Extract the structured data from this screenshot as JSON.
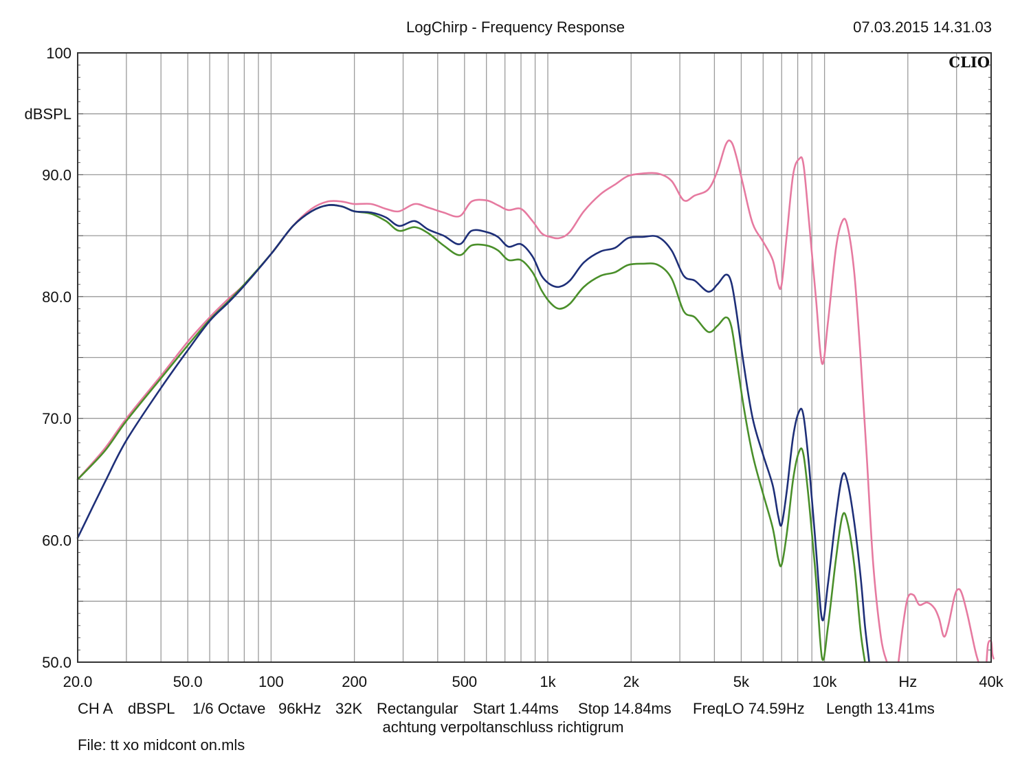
{
  "header": {
    "title": "LogChirp - Frequency Response",
    "timestamp": "07.03.2015 14.31.03",
    "brand": "CLIO"
  },
  "chart_data": {
    "type": "line",
    "title": "LogChirp - Frequency Response",
    "ylabel": "dBSPL",
    "xlabel": "Hz",
    "x_scale": "log",
    "xlim": [
      20,
      40000
    ],
    "ylim": [
      50,
      100
    ],
    "grid": true,
    "y_ticks": [
      "100",
      "90.0",
      "80.0",
      "70.0",
      "60.0",
      "50.0"
    ],
    "x_ticks": [
      {
        "v": 20,
        "label": "20.0"
      },
      {
        "v": 50,
        "label": "50.0"
      },
      {
        "v": 100,
        "label": "100"
      },
      {
        "v": 200,
        "label": "200"
      },
      {
        "v": 500,
        "label": "500"
      },
      {
        "v": 1000,
        "label": "1k"
      },
      {
        "v": 2000,
        "label": "2k"
      },
      {
        "v": 5000,
        "label": "5k"
      },
      {
        "v": 10000,
        "label": "10k"
      },
      {
        "v": 20000,
        "label": "Hz"
      },
      {
        "v": 40000,
        "label": "40k"
      }
    ],
    "series": [
      {
        "color": "#e67aa0",
        "points": [
          [
            20,
            65
          ],
          [
            25,
            67.5
          ],
          [
            30,
            70
          ],
          [
            40,
            73.5
          ],
          [
            50,
            76.3
          ],
          [
            60,
            78.3
          ],
          [
            70,
            79.8
          ],
          [
            80,
            81
          ],
          [
            100,
            83.5
          ],
          [
            120,
            85.8
          ],
          [
            140,
            87.2
          ],
          [
            160,
            87.8
          ],
          [
            180,
            87.8
          ],
          [
            200,
            87.6
          ],
          [
            230,
            87.6
          ],
          [
            260,
            87.2
          ],
          [
            290,
            87
          ],
          [
            330,
            87.6
          ],
          [
            370,
            87.3
          ],
          [
            420,
            86.9
          ],
          [
            480,
            86.6
          ],
          [
            530,
            87.8
          ],
          [
            600,
            87.9
          ],
          [
            660,
            87.5
          ],
          [
            720,
            87.1
          ],
          [
            800,
            87.2
          ],
          [
            880,
            86.2
          ],
          [
            950,
            85.2
          ],
          [
            1020,
            84.9
          ],
          [
            1100,
            84.8
          ],
          [
            1200,
            85.3
          ],
          [
            1350,
            87
          ],
          [
            1550,
            88.4
          ],
          [
            1750,
            89.2
          ],
          [
            1950,
            89.9
          ],
          [
            2200,
            90.1
          ],
          [
            2500,
            90.1
          ],
          [
            2800,
            89.5
          ],
          [
            3100,
            87.9
          ],
          [
            3400,
            88.3
          ],
          [
            3800,
            88.8
          ],
          [
            4100,
            90.3
          ],
          [
            4400,
            92.5
          ],
          [
            4600,
            92.7
          ],
          [
            4800,
            91.5
          ],
          [
            5100,
            89
          ],
          [
            5500,
            86
          ],
          [
            6000,
            84.5
          ],
          [
            6500,
            83
          ],
          [
            6800,
            81
          ],
          [
            7000,
            81
          ],
          [
            7300,
            85
          ],
          [
            7700,
            90
          ],
          [
            8100,
            91.3
          ],
          [
            8400,
            90.8
          ],
          [
            8800,
            86
          ],
          [
            9300,
            80
          ],
          [
            9800,
            74.5
          ],
          [
            10300,
            78
          ],
          [
            11000,
            84
          ],
          [
            11600,
            86.2
          ],
          [
            12100,
            85.8
          ],
          [
            12800,
            82
          ],
          [
            13500,
            75
          ],
          [
            14200,
            67
          ],
          [
            15000,
            58
          ],
          [
            16000,
            52
          ],
          [
            16800,
            50
          ]
        ]
      },
      {
        "color": "#4a8f2a",
        "points": [
          [
            20,
            65
          ],
          [
            25,
            67.3
          ],
          [
            30,
            69.8
          ],
          [
            40,
            73.3
          ],
          [
            50,
            76
          ],
          [
            60,
            78.1
          ],
          [
            70,
            79.6
          ],
          [
            80,
            81
          ],
          [
            100,
            83.5
          ],
          [
            120,
            85.8
          ],
          [
            140,
            87
          ],
          [
            160,
            87.5
          ],
          [
            180,
            87.4
          ],
          [
            200,
            87
          ],
          [
            230,
            86.8
          ],
          [
            260,
            86.2
          ],
          [
            290,
            85.4
          ],
          [
            330,
            85.7
          ],
          [
            370,
            85.2
          ],
          [
            420,
            84.2
          ],
          [
            480,
            83.4
          ],
          [
            530,
            84.2
          ],
          [
            600,
            84.2
          ],
          [
            660,
            83.8
          ],
          [
            720,
            83
          ],
          [
            800,
            83
          ],
          [
            880,
            82
          ],
          [
            950,
            80.5
          ],
          [
            1020,
            79.5
          ],
          [
            1100,
            79
          ],
          [
            1200,
            79.4
          ],
          [
            1350,
            80.8
          ],
          [
            1550,
            81.7
          ],
          [
            1750,
            82
          ],
          [
            1950,
            82.6
          ],
          [
            2200,
            82.7
          ],
          [
            2500,
            82.6
          ],
          [
            2800,
            81.5
          ],
          [
            3100,
            78.8
          ],
          [
            3400,
            78.3
          ],
          [
            3800,
            77.1
          ],
          [
            4100,
            77.6
          ],
          [
            4400,
            78.3
          ],
          [
            4600,
            77.6
          ],
          [
            4800,
            75
          ],
          [
            5100,
            71
          ],
          [
            5500,
            67
          ],
          [
            6000,
            63.8
          ],
          [
            6500,
            61
          ],
          [
            6800,
            58.5
          ],
          [
            7000,
            58
          ],
          [
            7300,
            60.5
          ],
          [
            7700,
            65
          ],
          [
            8100,
            67.3
          ],
          [
            8400,
            67
          ],
          [
            8800,
            63
          ],
          [
            9300,
            57
          ],
          [
            9800,
            50.3
          ],
          [
            10300,
            53
          ],
          [
            11000,
            58.5
          ],
          [
            11600,
            62
          ],
          [
            12100,
            61.5
          ],
          [
            12800,
            58
          ],
          [
            13500,
            52.5
          ],
          [
            14000,
            50
          ]
        ]
      },
      {
        "color": "#1e2f78",
        "points": [
          [
            20,
            60.2
          ],
          [
            25,
            64.7
          ],
          [
            30,
            68.2
          ],
          [
            40,
            72.5
          ],
          [
            50,
            75.6
          ],
          [
            60,
            78
          ],
          [
            70,
            79.5
          ],
          [
            80,
            80.9
          ],
          [
            100,
            83.5
          ],
          [
            120,
            85.8
          ],
          [
            140,
            87
          ],
          [
            160,
            87.5
          ],
          [
            180,
            87.4
          ],
          [
            200,
            87
          ],
          [
            230,
            86.9
          ],
          [
            260,
            86.5
          ],
          [
            290,
            85.8
          ],
          [
            330,
            86.2
          ],
          [
            370,
            85.5
          ],
          [
            420,
            85
          ],
          [
            480,
            84.3
          ],
          [
            530,
            85.4
          ],
          [
            600,
            85.3
          ],
          [
            660,
            84.9
          ],
          [
            720,
            84.1
          ],
          [
            800,
            84.3
          ],
          [
            880,
            83.3
          ],
          [
            950,
            81.7
          ],
          [
            1020,
            81
          ],
          [
            1100,
            80.8
          ],
          [
            1200,
            81.3
          ],
          [
            1350,
            82.8
          ],
          [
            1550,
            83.7
          ],
          [
            1750,
            84
          ],
          [
            1950,
            84.8
          ],
          [
            2200,
            84.9
          ],
          [
            2500,
            84.9
          ],
          [
            2800,
            83.8
          ],
          [
            3100,
            81.7
          ],
          [
            3400,
            81.3
          ],
          [
            3800,
            80.4
          ],
          [
            4100,
            81
          ],
          [
            4400,
            81.8
          ],
          [
            4600,
            81.2
          ],
          [
            4800,
            78.8
          ],
          [
            5100,
            74.5
          ],
          [
            5500,
            70
          ],
          [
            6000,
            67
          ],
          [
            6500,
            64.5
          ],
          [
            6800,
            62
          ],
          [
            7000,
            61.3
          ],
          [
            7300,
            64
          ],
          [
            7700,
            68.5
          ],
          [
            8100,
            70.6
          ],
          [
            8400,
            70.2
          ],
          [
            8800,
            66
          ],
          [
            9300,
            59.5
          ],
          [
            9800,
            53.5
          ],
          [
            10300,
            56.5
          ],
          [
            11000,
            62
          ],
          [
            11600,
            65.3
          ],
          [
            12100,
            64.8
          ],
          [
            12800,
            61.5
          ],
          [
            13500,
            57
          ],
          [
            14000,
            53
          ],
          [
            14500,
            50
          ]
        ]
      },
      {
        "color": "#e67aa0",
        "points": [
          [
            18500,
            50
          ],
          [
            19200,
            53
          ],
          [
            20000,
            55.3
          ],
          [
            21000,
            55.5
          ],
          [
            22000,
            54.7
          ],
          [
            23500,
            54.9
          ],
          [
            25000,
            54.4
          ],
          [
            26000,
            53.5
          ],
          [
            27000,
            52.1
          ],
          [
            28000,
            53
          ],
          [
            29500,
            55.4
          ],
          [
            30500,
            56
          ],
          [
            31500,
            55.5
          ],
          [
            33000,
            53.7
          ],
          [
            35000,
            51
          ],
          [
            36000,
            50
          ]
        ]
      },
      {
        "color": "#e67aa0",
        "points": [
          [
            38500,
            50
          ],
          [
            39000,
            51.5
          ],
          [
            40000,
            51.7
          ],
          [
            40400,
            50.7
          ],
          [
            40800,
            50.3
          ]
        ]
      }
    ]
  },
  "footer": {
    "line1": [
      "CH A",
      "dBSPL",
      "1/6 Octave",
      "96kHz",
      "32K",
      "Rectangular",
      "Start 1.44ms",
      "Stop 14.84ms",
      "FreqLO 74.59Hz",
      "Length 13.41ms"
    ],
    "line2": "achtung verpoltanschluss richtigrum",
    "file": "File: tt xo midcont on.mls"
  }
}
